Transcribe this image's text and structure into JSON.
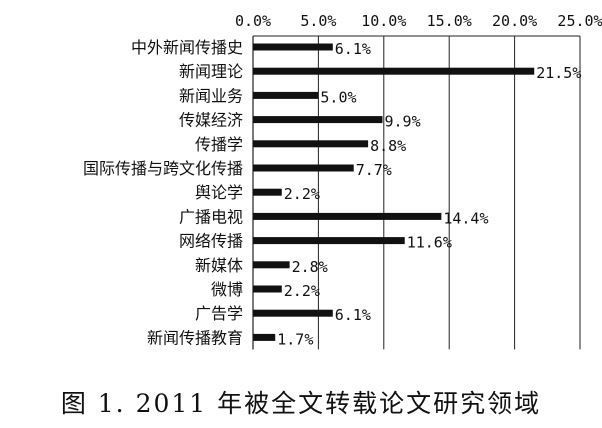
{
  "chart_data": {
    "type": "bar",
    "orientation": "horizontal",
    "title": "",
    "xlabel": "",
    "ylabel": "",
    "xlim": [
      0,
      25
    ],
    "x_ticks": [
      "0.0%",
      "5.0%",
      "10.0%",
      "15.0%",
      "20.0%",
      "25.0%"
    ],
    "x_axis_position": "top",
    "grid": true,
    "legend": "none",
    "bar_color": "#111111",
    "categories": [
      "中外新闻传播史",
      "新闻理论",
      "新闻业务",
      "传媒经济",
      "传播学",
      "国际传播与跨文化传播",
      "舆论学",
      "广播电视",
      "网络传播",
      "新媒体",
      "微博",
      "广告学",
      "新闻传播教育"
    ],
    "values": [
      6.1,
      21.5,
      5.0,
      9.9,
      8.8,
      7.7,
      2.2,
      14.4,
      11.6,
      2.8,
      2.2,
      6.1,
      1.7
    ],
    "data_labels": [
      "6.1%",
      "21.5%",
      "5.0%",
      "9.9%",
      "8.8%",
      "7.7%",
      "2.2%",
      "14.4%",
      "11.6%",
      "2.8%",
      "2.2%",
      "6.1%",
      "1.7%"
    ]
  },
  "caption": "图 1. 2011 年被全文转载论文研究领域"
}
